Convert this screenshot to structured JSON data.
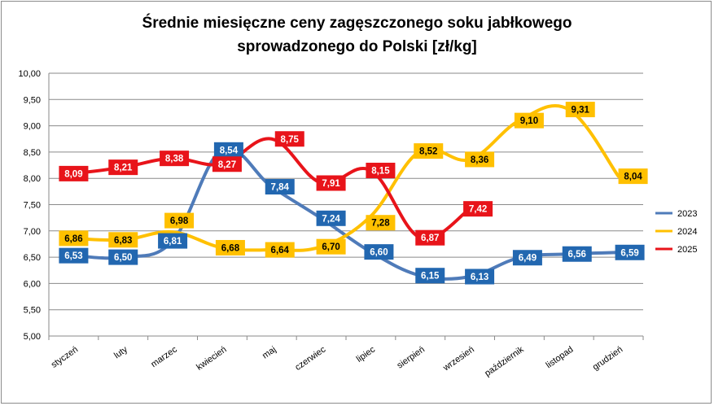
{
  "chart_data": {
    "type": "line",
    "title_line1": "Średnie miesięczne ceny zagęszczonego soku jabłkowego",
    "title_line2": "sprowadzonego do Polski [zł/kg]",
    "xlabel": "",
    "ylabel": "",
    "ylim": [
      5.0,
      10.0
    ],
    "ytick_step": 0.5,
    "yticks": [
      "5,00",
      "5,50",
      "6,00",
      "6,50",
      "7,00",
      "7,50",
      "8,00",
      "8,50",
      "9,00",
      "9,50",
      "10,00"
    ],
    "categories": [
      "styczeń",
      "luty",
      "marzec",
      "kwiecień",
      "maj",
      "czerwiec",
      "lipiec",
      "sierpień",
      "wrzesień",
      "październik",
      "listopad",
      "grudzień"
    ],
    "grid": true,
    "legend_position": "right",
    "series": [
      {
        "name": "2023",
        "color": "#4f7bb9",
        "label_bg": "#2267b0",
        "label_fg": "#ffffff",
        "values": [
          6.53,
          6.5,
          6.81,
          8.54,
          7.84,
          7.24,
          6.6,
          6.15,
          6.13,
          6.49,
          6.56,
          6.59
        ],
        "labels": [
          "6,53",
          "6,50",
          "6,81",
          "8,54",
          "7,84",
          "7,24",
          "6,60",
          "6,15",
          "6,13",
          "6,49",
          "6,56",
          "6,59"
        ]
      },
      {
        "name": "2024",
        "color": "#ffc000",
        "label_bg": "#ffc000",
        "label_fg": "#000000",
        "values": [
          6.86,
          6.83,
          6.98,
          6.68,
          6.64,
          6.7,
          7.28,
          8.52,
          8.36,
          9.1,
          9.31,
          8.04
        ],
        "labels": [
          "6,86",
          "6,83",
          "6,98",
          "6,68",
          "6,64",
          "6,70",
          "7,28",
          "8,52",
          "8,36",
          "9,10",
          "9,31",
          "8,04"
        ]
      },
      {
        "name": "2025",
        "color": "#e8141a",
        "label_bg": "#e8141a",
        "label_fg": "#ffffff",
        "values": [
          8.09,
          8.21,
          8.38,
          8.27,
          8.75,
          7.91,
          8.15,
          6.87,
          7.42,
          null,
          null,
          null
        ],
        "labels": [
          "8,09",
          "8,21",
          "8,38",
          "8,27",
          "8,75",
          "7,91",
          "8,15",
          "6,87",
          "7,42",
          null,
          null,
          null
        ]
      }
    ]
  }
}
